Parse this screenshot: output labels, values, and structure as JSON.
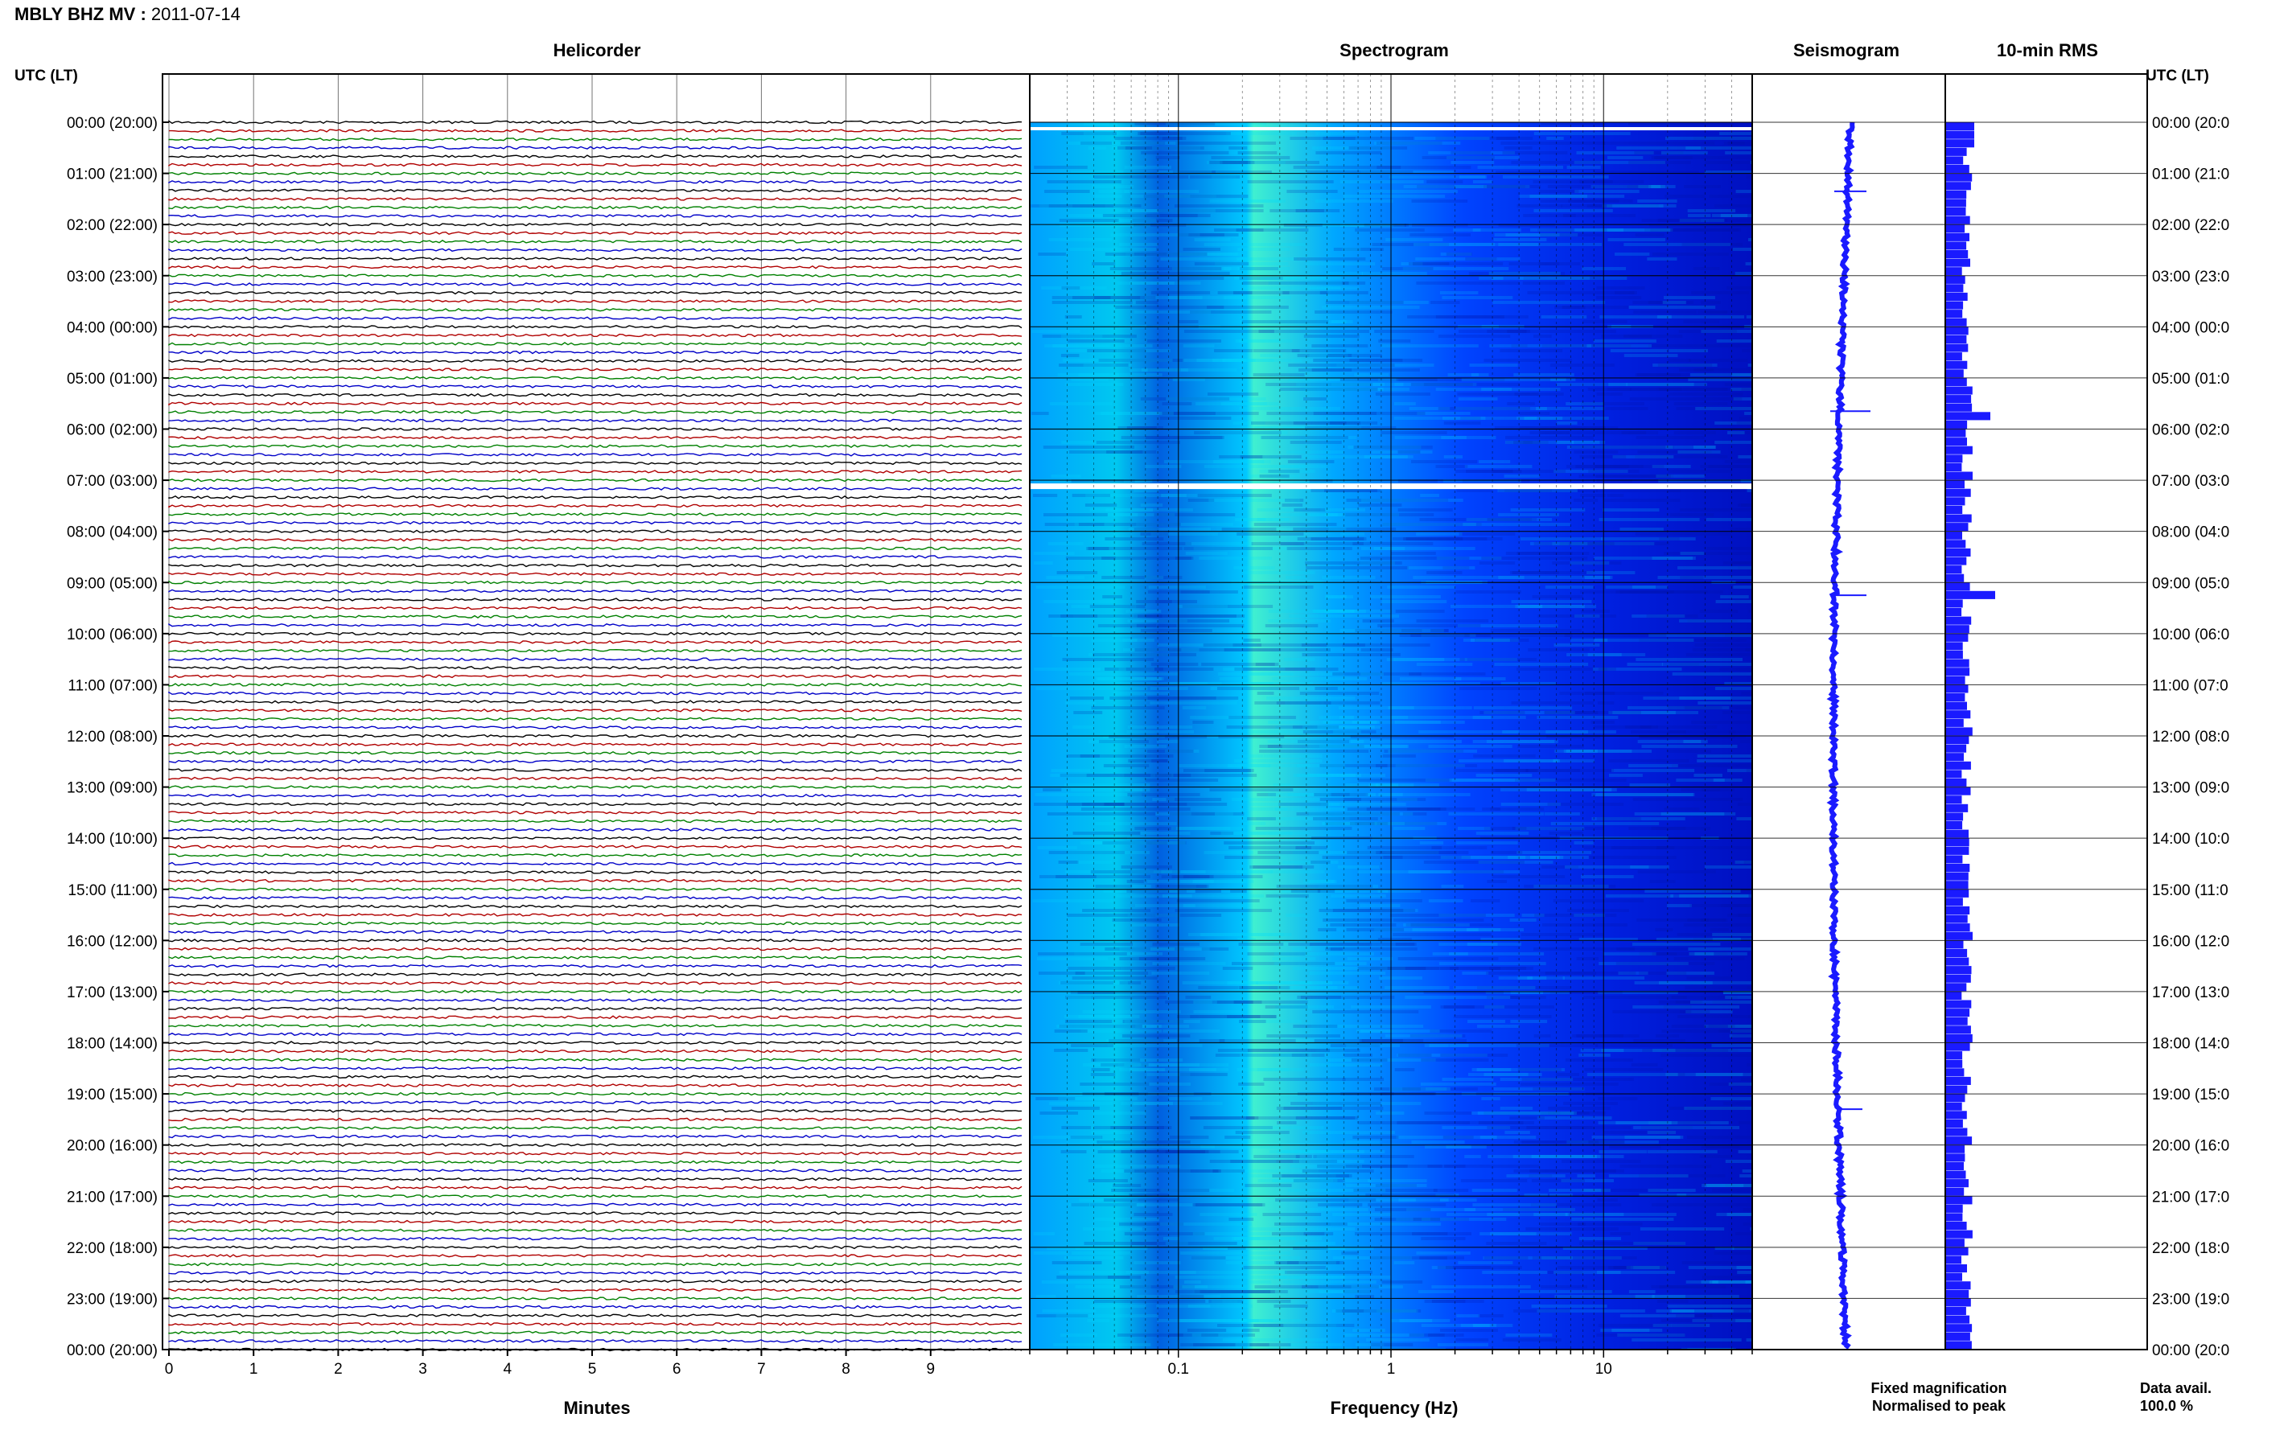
{
  "header": {
    "station_label": "MBLY BHZ MV",
    "separator": " : ",
    "date": "2011-07-14"
  },
  "panels": {
    "helicorder": "Helicorder",
    "spectrogram": "Spectrogram",
    "seismogram": "Seismogram",
    "rms": "10-min RMS"
  },
  "axes": {
    "left_time_label": "UTC (LT)",
    "right_time_label": "UTC (LT)",
    "minutes_label": "Minutes",
    "frequency_label": "Frequency (Hz)"
  },
  "legend": {
    "fixed": "Fixed magnification",
    "fixed_color": "#1a1aff",
    "normalised": "Normalised to peak",
    "normalised_color": "#ff1a1a",
    "data_avail_label": "Data avail.",
    "data_avail_value": "100.0 %"
  },
  "chart_data": {
    "type": "heatmap",
    "time_ticks": [
      "00:00 (20:00)",
      "01:00 (21:00)",
      "02:00 (22:00)",
      "03:00 (23:00)",
      "04:00 (00:00)",
      "05:00 (01:00)",
      "06:00 (02:00)",
      "07:00 (03:00)",
      "08:00 (04:00)",
      "09:00 (05:00)",
      "10:00 (06:00)",
      "11:00 (07:00)",
      "12:00 (08:00)",
      "13:00 (09:00)",
      "14:00 (10:00)",
      "15:00 (11:00)",
      "16:00 (12:00)",
      "17:00 (13:00)",
      "18:00 (14:00)",
      "19:00 (15:00)",
      "20:00 (16:00)",
      "21:00 (17:00)",
      "22:00 (18:00)",
      "23:00 (19:00)",
      "00:00 (20:00)"
    ],
    "minute_ticks": [
      "0",
      "1",
      "2",
      "3",
      "4",
      "5",
      "6",
      "7",
      "8",
      "9"
    ],
    "minute_range": [
      0,
      10
    ],
    "frequency_ticks": [
      "0.1",
      "1",
      "10"
    ],
    "frequency_range_hz": [
      0.02,
      50
    ],
    "frequency_scale": "log",
    "helicorder_trace_colors": [
      "#000000",
      "#b00000",
      "#008000",
      "#0000c8"
    ],
    "helicorder_traces_per_hour": 6,
    "spectrogram_colormap": [
      "#00008b",
      "#0000ff",
      "#0077ff",
      "#00ccff",
      "#66ffcc"
    ],
    "seismogram_color": "#1a1aff",
    "rms_color": "#1a1aff"
  }
}
